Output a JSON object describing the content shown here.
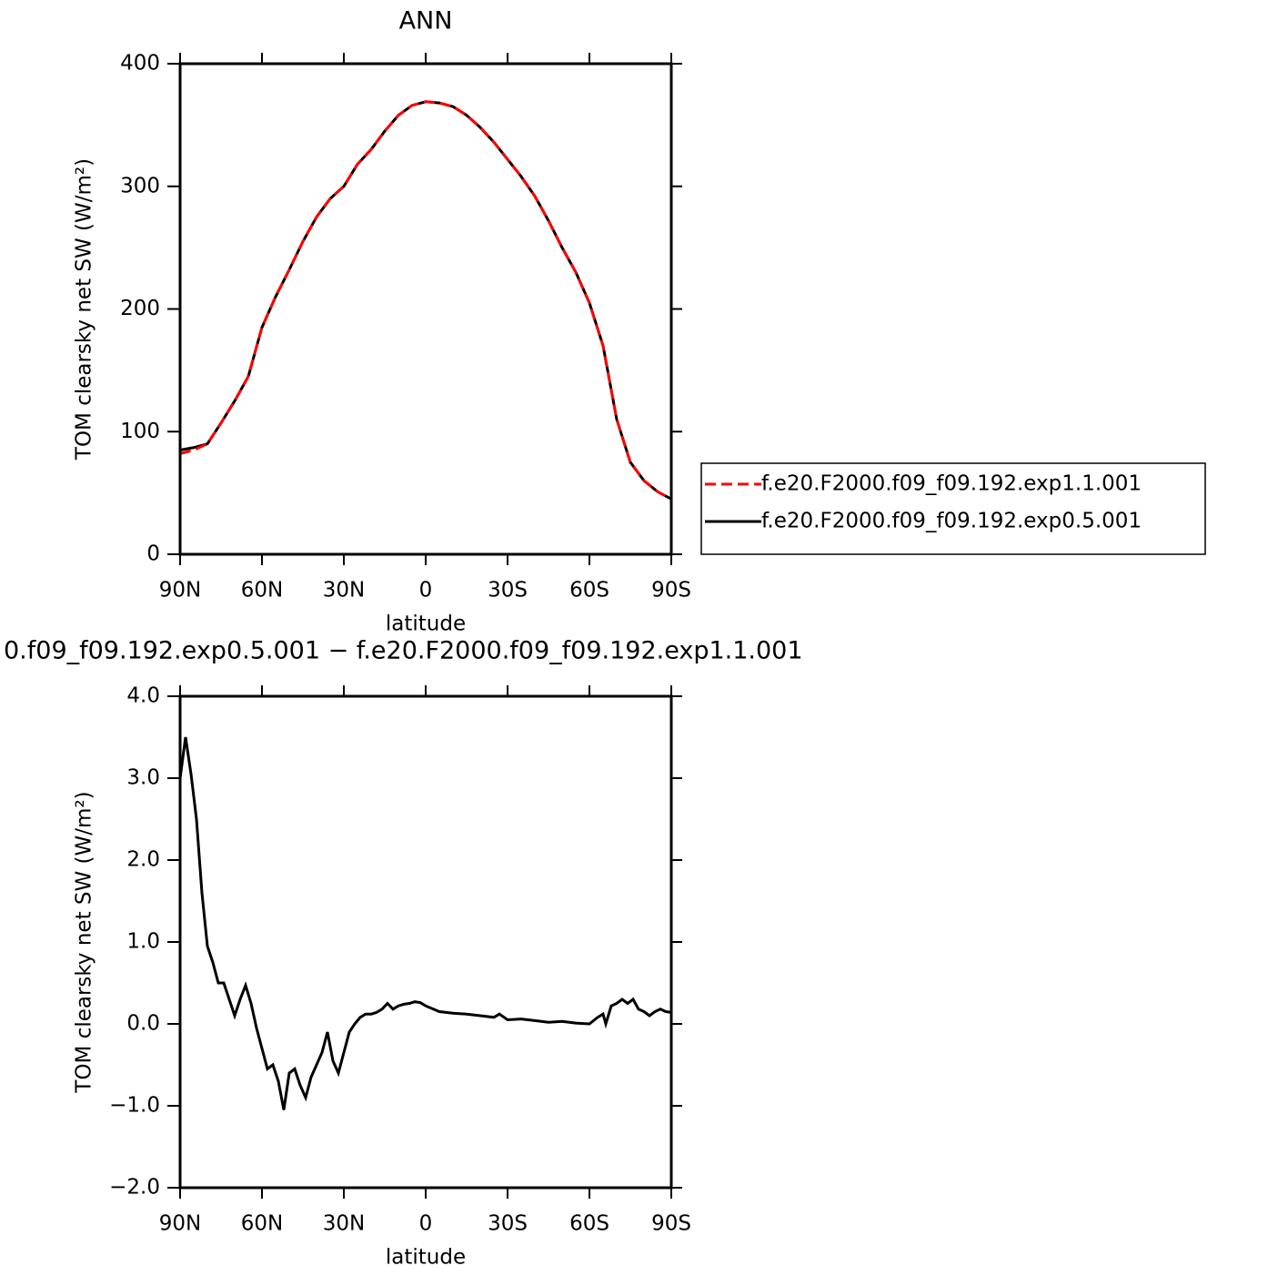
{
  "chart_data": [
    {
      "type": "line",
      "title": "ANN",
      "xlabel": "latitude",
      "ylabel": "TOM clearsky net SW (W/m²)",
      "x": [
        90,
        85,
        80,
        75,
        70,
        65,
        60,
        55,
        50,
        45,
        40,
        35,
        30,
        25,
        20,
        15,
        10,
        5,
        0,
        -5,
        -10,
        -15,
        -20,
        -25,
        -30,
        -35,
        -40,
        -45,
        -50,
        -55,
        -60,
        -65,
        -70,
        -75,
        -80,
        -85,
        -90
      ],
      "series": [
        {
          "name": "f.e20.F2000.f09_f09.192.exp1.1.001",
          "color": "#ff0000",
          "linestyle": "dashed",
          "values": [
            82,
            85,
            90,
            107,
            125,
            145,
            185,
            210,
            232,
            255,
            275,
            290,
            300,
            318,
            330,
            345,
            358,
            366,
            369,
            368,
            365,
            358,
            348,
            336,
            322,
            308,
            292,
            272,
            250,
            230,
            205,
            170,
            110,
            75,
            60,
            51,
            45
          ]
        },
        {
          "name": "f.e20.F2000.f09_f09.192.exp0.5.001",
          "color": "#000000",
          "linestyle": "solid",
          "values": [
            85,
            87,
            90,
            107,
            125,
            145,
            185,
            210,
            232,
            255,
            275,
            290,
            300,
            318,
            330,
            345,
            358,
            366,
            369,
            368,
            365,
            358,
            348,
            336,
            322,
            308,
            292,
            272,
            250,
            230,
            205,
            170,
            110,
            75,
            60,
            51,
            45
          ]
        }
      ],
      "xlim": [
        90,
        -90
      ],
      "xticks": [
        {
          "value": 90,
          "label": "90N"
        },
        {
          "value": 60,
          "label": "60N"
        },
        {
          "value": 30,
          "label": "30N"
        },
        0,
        {
          "value": -30,
          "label": "30S"
        },
        {
          "value": -60,
          "label": "60S"
        },
        {
          "value": -90,
          "label": "90S"
        }
      ],
      "ylim": [
        0,
        400
      ],
      "yticks": [
        0,
        100,
        200,
        300,
        400
      ],
      "legend": "outside-right"
    },
    {
      "type": "line",
      "title": "0.f09_f09.192.exp0.5.001 − f.e20.F2000.f09_f09.192.exp1.1.001",
      "xlabel": "latitude",
      "ylabel": "TOM clearsky net SW (W/m²)",
      "x": [
        90,
        88,
        86,
        84,
        82,
        80,
        78,
        76,
        74,
        72,
        70,
        68,
        66,
        64,
        62,
        60,
        58,
        56,
        54,
        52,
        50,
        48,
        46,
        44,
        42,
        40,
        38,
        36,
        34,
        32,
        30,
        28,
        26,
        24,
        22,
        20,
        18,
        16,
        14,
        12,
        10,
        8,
        6,
        4,
        2,
        0,
        -5,
        -10,
        -15,
        -20,
        -25,
        -27,
        -30,
        -35,
        -40,
        -45,
        -50,
        -55,
        -60,
        -63,
        -65,
        -66,
        -68,
        -70,
        -72,
        -74,
        -76,
        -78,
        -80,
        -82,
        -84,
        -86,
        -88,
        -90
      ],
      "series": [
        {
          "color": "#000000",
          "linestyle": "solid",
          "values": [
            3.0,
            3.5,
            3.05,
            2.5,
            1.6,
            0.95,
            0.75,
            0.5,
            0.5,
            0.3,
            0.1,
            0.3,
            0.47,
            0.25,
            -0.05,
            -0.3,
            -0.55,
            -0.5,
            -0.7,
            -1.05,
            -0.6,
            -0.55,
            -0.75,
            -0.9,
            -0.65,
            -0.5,
            -0.35,
            -0.1,
            -0.45,
            -0.6,
            -0.35,
            -0.1,
            0.0,
            0.08,
            0.12,
            0.12,
            0.14,
            0.18,
            0.25,
            0.18,
            0.22,
            0.24,
            0.25,
            0.27,
            0.26,
            0.22,
            0.15,
            0.13,
            0.12,
            0.1,
            0.08,
            0.12,
            0.05,
            0.06,
            0.04,
            0.02,
            0.03,
            0.01,
            0.0,
            0.08,
            0.12,
            0.0,
            0.22,
            0.25,
            0.3,
            0.25,
            0.3,
            0.18,
            0.15,
            0.1,
            0.15,
            0.18,
            0.15,
            0.14
          ]
        }
      ],
      "xlim": [
        90,
        -90
      ],
      "xticks": [
        {
          "value": 90,
          "label": "90N"
        },
        {
          "value": 60,
          "label": "60N"
        },
        {
          "value": 30,
          "label": "30N"
        },
        0,
        {
          "value": -30,
          "label": "30S"
        },
        {
          "value": -60,
          "label": "60S"
        },
        {
          "value": -90,
          "label": "90S"
        }
      ],
      "ylim": [
        -2,
        4
      ],
      "yticks": [
        {
          "value": -2,
          "label": "−2.0"
        },
        {
          "value": -1,
          "label": "−1.0"
        },
        {
          "value": 0,
          "label": "0.0"
        },
        {
          "value": 1,
          "label": "1.0"
        },
        {
          "value": 2,
          "label": "2.0"
        },
        {
          "value": 3,
          "label": "3.0"
        },
        {
          "value": 4,
          "label": "4.0"
        }
      ]
    }
  ]
}
